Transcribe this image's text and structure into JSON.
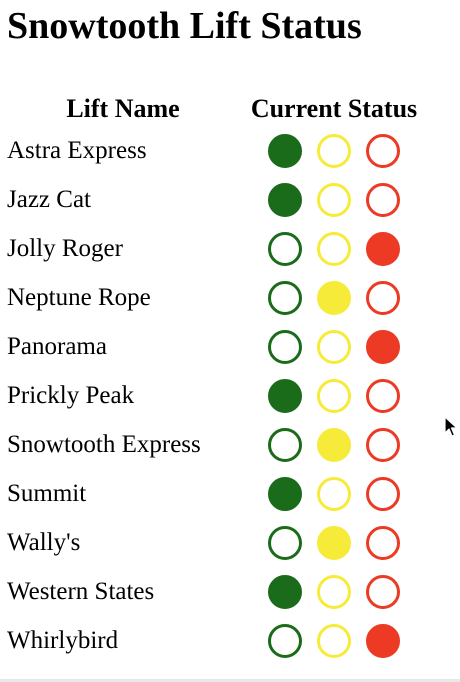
{
  "page": {
    "title": "Snowtooth Lift Status"
  },
  "table": {
    "headers": {
      "name": "Lift Name",
      "status": "Current Status"
    },
    "lifts": [
      {
        "name": "Astra Express",
        "status": "open"
      },
      {
        "name": "Jazz Cat",
        "status": "open"
      },
      {
        "name": "Jolly Roger",
        "status": "closed"
      },
      {
        "name": "Neptune Rope",
        "status": "hold"
      },
      {
        "name": "Panorama",
        "status": "closed"
      },
      {
        "name": "Prickly Peak",
        "status": "open"
      },
      {
        "name": "Snowtooth Express",
        "status": "hold"
      },
      {
        "name": "Summit",
        "status": "open"
      },
      {
        "name": "Wally's",
        "status": "hold"
      },
      {
        "name": "Western States",
        "status": "open"
      },
      {
        "name": "Whirlybird",
        "status": "closed"
      }
    ]
  },
  "status_colors": {
    "open": "#1a6b1a",
    "hold": "#f7eb3a",
    "closed": "#ec3a25"
  },
  "cursor": {
    "icon": "arrow-pointer-icon"
  }
}
